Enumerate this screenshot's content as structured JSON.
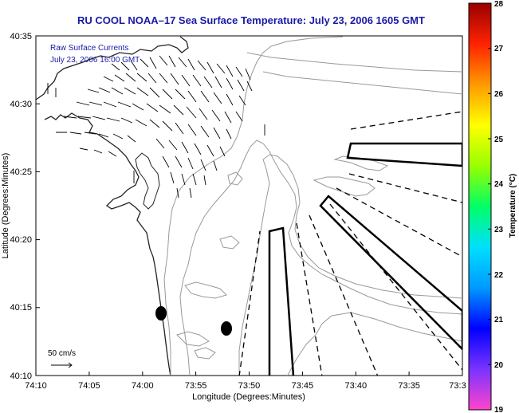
{
  "title": "RU COOL  NOAA–17  Sea Surface Temperature:  July 23, 2006 1605 GMT",
  "overlay": {
    "line1": "Raw Surface Currents",
    "line2": "July 23, 2006 16:00 GMT"
  },
  "scale_label": "50 cm/s",
  "axes": {
    "xlabel": "Longitude (Degrees:Minutes)",
    "ylabel": "Latitude (Degrees:Minutes)",
    "xticks": [
      "74:10",
      "74:05",
      "74:00",
      "73:55",
      "73:50",
      "73:45",
      "73:40",
      "73:35",
      "73:3"
    ],
    "yticks": [
      "40:35",
      "40:30",
      "40:25",
      "40:20",
      "40:15",
      "40:10"
    ]
  },
  "colorbar": {
    "label": "Temperature (°C)",
    "min": 19,
    "max": 28,
    "ticks": [
      "28",
      "27",
      "26",
      "25",
      "24",
      "23",
      "22",
      "21",
      "20",
      "19"
    ],
    "colors": [
      "#ff44cc",
      "#7a33ff",
      "#0000ff",
      "#0099ff",
      "#00e0ff",
      "#00ff66",
      "#99ff00",
      "#ffff00",
      "#ff9900",
      "#ff2200",
      "#990000"
    ]
  }
}
